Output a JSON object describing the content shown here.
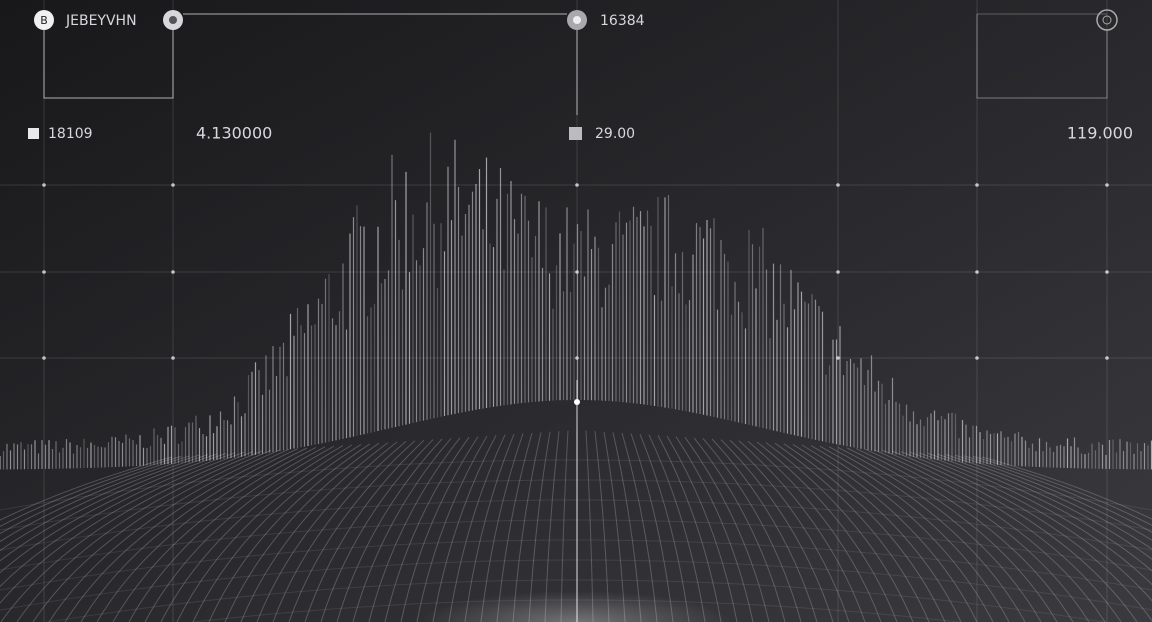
{
  "header": {
    "title": "JEBEYVHN",
    "code": "16384"
  },
  "stats": [
    "18109",
    "4.130000",
    "29.00",
    "119.000"
  ]
}
